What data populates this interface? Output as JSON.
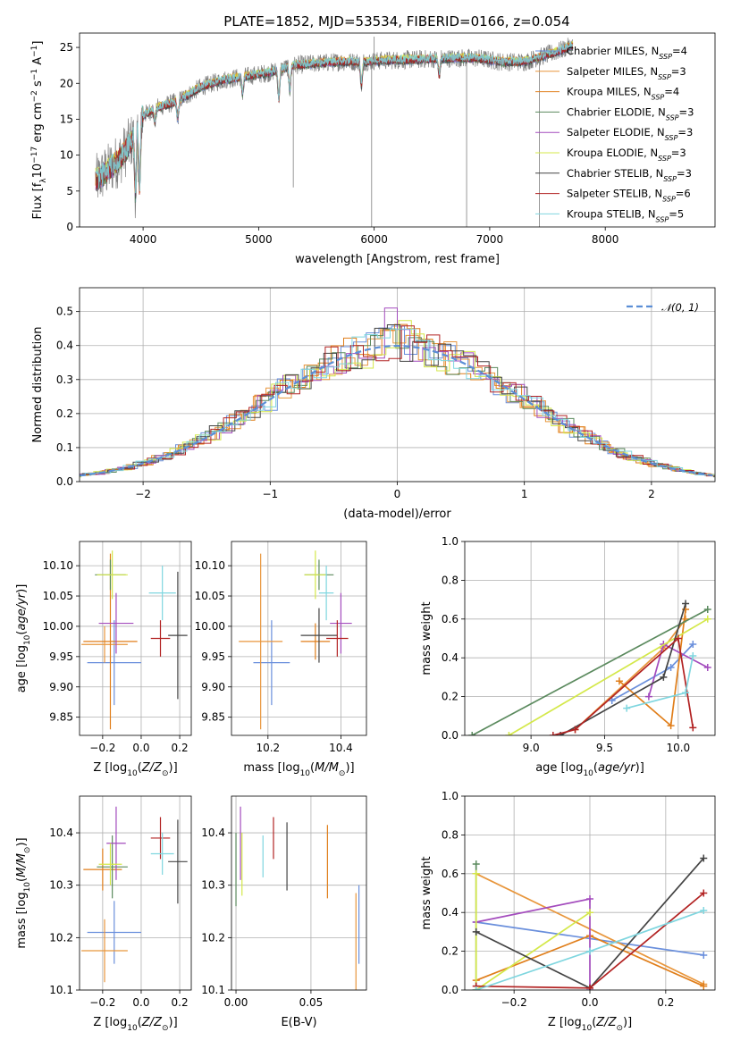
{
  "figure": {
    "title": "PLATE=1852, MJD=53534, FIBERID=0166, z=0.054"
  },
  "colors": {
    "series": [
      "#6a8fdc",
      "#e8963c",
      "#e07e1a",
      "#5b8a5e",
      "#a34bbd",
      "#d4e84a",
      "#444444",
      "#b22222",
      "#7fd6df"
    ]
  },
  "chart_data": [
    {
      "id": "spectrum",
      "type": "line",
      "xlabel": "wavelength [Angstrom, rest frame]",
      "ylabel": "Flux [f_λ 10^-17 erg cm^-2 s^-1 A^-1]",
      "xlim": [
        3450,
        8950
      ],
      "ylim": [
        0,
        27
      ],
      "xticks": [
        4000,
        5000,
        6000,
        7000,
        8000
      ],
      "yticks": [
        0,
        5,
        10,
        15,
        20,
        25
      ],
      "grid": false,
      "legend_placement": "top-right",
      "legend": [
        {
          "label": "Chabrier MILES",
          "nssp": "4"
        },
        {
          "label": "Salpeter MILES",
          "nssp": "3"
        },
        {
          "label": "Kroupa MILES",
          "nssp": "4"
        },
        {
          "label": "Chabrier ELODIE",
          "nssp": "3"
        },
        {
          "label": "Salpeter ELODIE",
          "nssp": "3"
        },
        {
          "label": "Kroupa ELODIE",
          "nssp": "3"
        },
        {
          "label": "Chabrier STELIB",
          "nssp": "3"
        },
        {
          "label": "Salpeter STELIB",
          "nssp": "6"
        },
        {
          "label": "Kroupa STELIB",
          "nssp": "5"
        }
      ],
      "continuum": [
        [
          3600,
          6.5
        ],
        [
          3700,
          8.0
        ],
        [
          3800,
          9.5
        ],
        [
          3900,
          12.0
        ],
        [
          4000,
          15.5
        ],
        [
          4100,
          16.5
        ],
        [
          4200,
          17.0
        ],
        [
          4300,
          17.5
        ],
        [
          4400,
          18.5
        ],
        [
          4500,
          19.5
        ],
        [
          4700,
          20.5
        ],
        [
          4900,
          21.0
        ],
        [
          5100,
          21.5
        ],
        [
          5300,
          22.5
        ],
        [
          5500,
          22.8
        ],
        [
          5700,
          23.0
        ],
        [
          5900,
          23.0
        ],
        [
          6100,
          23.2
        ],
        [
          6300,
          23.3
        ],
        [
          6500,
          23.4
        ],
        [
          6700,
          23.5
        ],
        [
          6900,
          23.5
        ],
        [
          7100,
          23.0
        ],
        [
          7300,
          23.0
        ],
        [
          7500,
          24.0
        ],
        [
          7600,
          24.5
        ],
        [
          7700,
          25.2
        ]
      ],
      "absorption_dips": [
        [
          3934,
          4.0
        ],
        [
          3969,
          5.0
        ],
        [
          4102,
          14.5
        ],
        [
          4300,
          15.0
        ],
        [
          4861,
          18.5
        ],
        [
          5175,
          17.5
        ],
        [
          5270,
          19.0
        ],
        [
          5890,
          19.5
        ],
        [
          6563,
          21.0
        ]
      ],
      "spikes": [
        [
          5300,
          5.5
        ],
        [
          5978,
          0.0
        ],
        [
          6000,
          26.5
        ],
        [
          6800,
          0.0
        ],
        [
          7430,
          0.0
        ]
      ]
    },
    {
      "id": "residuals",
      "type": "bar",
      "xlabel": "(data-model)/error",
      "ylabel": "Normed distribution",
      "xlim": [
        -2.5,
        2.5
      ],
      "ylim": [
        0,
        0.57
      ],
      "xticks": [
        -2,
        -1,
        0,
        1,
        2
      ],
      "yticks": [
        0.0,
        0.1,
        0.2,
        0.3,
        0.4,
        0.5
      ],
      "grid": true,
      "legend_placement": "top-right",
      "legend_label": "𝒩(0, 1)",
      "bin_width": 0.1,
      "gaussian": {
        "mean": 0,
        "sigma": 1
      }
    },
    {
      "id": "age-vs-Z",
      "type": "scatter",
      "xlabel": "Z [log10(Z/Z⊙)]",
      "ylabel": "age [log10(age/yr)]",
      "xlim": [
        -0.32,
        0.26
      ],
      "ylim": [
        9.82,
        10.14
      ],
      "xticks": [
        -0.2,
        0.0,
        0.2
      ],
      "yticks": [
        9.85,
        9.9,
        9.95,
        10.0,
        10.05,
        10.1
      ],
      "grid": true,
      "points": [
        {
          "x": -0.14,
          "y": 9.94,
          "xerr": 0.14,
          "yerr": 0.07
        },
        {
          "x": -0.19,
          "y": 9.97,
          "xerr": 0.12,
          "yerr": 0.03
        },
        {
          "x": -0.16,
          "y": 9.975,
          "xerr": 0.14,
          "yerr": 0.145
        },
        {
          "x": -0.16,
          "y": 10.085,
          "xerr": 0.08,
          "yerr": 0.025
        },
        {
          "x": -0.13,
          "y": 10.005,
          "xerr": 0.09,
          "yerr": 0.05
        },
        {
          "x": -0.15,
          "y": 10.085,
          "xerr": 0.08,
          "yerr": 0.04
        },
        {
          "x": 0.19,
          "y": 9.985,
          "xerr": 0.05,
          "yerr": 0.105
        },
        {
          "x": 0.1,
          "y": 9.98,
          "xerr": 0.05,
          "yerr": 0.03
        },
        {
          "x": 0.11,
          "y": 10.055,
          "xerr": 0.07,
          "yerr": 0.045
        }
      ]
    },
    {
      "id": "age-vs-mass",
      "type": "scatter",
      "xlabel": "mass [log10(M/M⊙)]",
      "ylabel": "",
      "xlim": [
        10.1,
        10.47
      ],
      "ylim": [
        9.82,
        10.14
      ],
      "xticks": [
        10.2,
        10.4
      ],
      "yticks": [
        9.85,
        9.9,
        9.95,
        10.0,
        10.05,
        10.1
      ],
      "grid": true,
      "points": [
        {
          "x": 10.21,
          "y": 9.94,
          "xerr": 0.05,
          "yerr": 0.07
        },
        {
          "x": 10.18,
          "y": 9.975,
          "xerr": 0.06,
          "yerr": 0.145
        },
        {
          "x": 10.33,
          "y": 9.975,
          "xerr": 0.04,
          "yerr": 0.03
        },
        {
          "x": 10.34,
          "y": 10.085,
          "xerr": 0.04,
          "yerr": 0.025
        },
        {
          "x": 10.4,
          "y": 10.005,
          "xerr": 0.03,
          "yerr": 0.05
        },
        {
          "x": 10.33,
          "y": 10.085,
          "xerr": 0.03,
          "yerr": 0.04
        },
        {
          "x": 10.34,
          "y": 9.985,
          "xerr": 0.05,
          "yerr": 0.045
        },
        {
          "x": 10.39,
          "y": 9.98,
          "xerr": 0.03,
          "yerr": 0.03
        },
        {
          "x": 10.36,
          "y": 10.055,
          "xerr": 0.02,
          "yerr": 0.045
        }
      ]
    },
    {
      "id": "mass-weight-vs-age",
      "type": "line",
      "xlabel": "age  [log10(age/yr)]",
      "ylabel": "mass weight",
      "xlim": [
        8.55,
        10.25
      ],
      "ylim": [
        0,
        1
      ],
      "xticks": [
        9.0,
        9.5,
        10.0
      ],
      "yticks": [
        0.0,
        0.2,
        0.4,
        0.6,
        0.8,
        1.0
      ],
      "grid": true,
      "series": [
        {
          "x": [
            9.55,
            9.95,
            10.1
          ],
          "y": [
            0.18,
            0.35,
            0.47
          ]
        },
        {
          "x": [
            9.3,
            9.9,
            10.05
          ],
          "y": [
            0.03,
            0.45,
            0.6
          ]
        },
        {
          "x": [
            9.6,
            9.95,
            10.05
          ],
          "y": [
            0.28,
            0.05,
            0.65
          ]
        },
        {
          "x": [
            8.6,
            10.2
          ],
          "y": [
            0.0,
            0.65
          ]
        },
        {
          "x": [
            9.8,
            9.9,
            10.2
          ],
          "y": [
            0.2,
            0.47,
            0.35
          ]
        },
        {
          "x": [
            8.85,
            10.2
          ],
          "y": [
            0.0,
            0.6
          ]
        },
        {
          "x": [
            9.2,
            9.9,
            10.05
          ],
          "y": [
            0.0,
            0.3,
            0.68
          ]
        },
        {
          "x": [
            9.15,
            9.3,
            10.0,
            10.1
          ],
          "y": [
            0.0,
            0.03,
            0.5,
            0.04
          ]
        },
        {
          "x": [
            9.65,
            10.05,
            10.1
          ],
          "y": [
            0.14,
            0.22,
            0.41
          ]
        }
      ]
    },
    {
      "id": "mass-vs-Z",
      "type": "scatter",
      "xlabel": "Z [log10(Z/Z⊙)]",
      "ylabel": "mass [log10(M/M⊙)]",
      "xlim": [
        -0.32,
        0.26
      ],
      "ylim": [
        10.1,
        10.47
      ],
      "xticks": [
        -0.2,
        0.0,
        0.2
      ],
      "yticks": [
        10.1,
        10.2,
        10.3,
        10.4
      ],
      "grid": true,
      "points": [
        {
          "x": -0.14,
          "y": 10.21,
          "xerr": 0.14,
          "yerr": 0.06
        },
        {
          "x": -0.19,
          "y": 10.175,
          "xerr": 0.12,
          "yerr": 0.06
        },
        {
          "x": -0.2,
          "y": 10.33,
          "xerr": 0.1,
          "yerr": 0.04
        },
        {
          "x": -0.15,
          "y": 10.335,
          "xerr": 0.08,
          "yerr": 0.06
        },
        {
          "x": -0.13,
          "y": 10.38,
          "xerr": 0.05,
          "yerr": 0.07
        },
        {
          "x": -0.16,
          "y": 10.34,
          "xerr": 0.06,
          "yerr": 0.04
        },
        {
          "x": 0.19,
          "y": 10.345,
          "xerr": 0.05,
          "yerr": 0.08
        },
        {
          "x": 0.1,
          "y": 10.39,
          "xerr": 0.05,
          "yerr": 0.04
        },
        {
          "x": 0.11,
          "y": 10.36,
          "xerr": 0.06,
          "yerr": 0.04
        }
      ]
    },
    {
      "id": "mass-vs-EBV",
      "type": "scatter",
      "xlabel": "E(B-V)",
      "ylabel": "",
      "xlim": [
        -0.003,
        0.087
      ],
      "ylim": [
        10.1,
        10.47
      ],
      "xticks": [
        0.0,
        0.05
      ],
      "yticks": [
        10.1,
        10.2,
        10.3,
        10.4
      ],
      "grid": true,
      "points": [
        {
          "x": 0.082,
          "y": 10.225,
          "yerr": 0.075
        },
        {
          "x": 0.08,
          "y": 10.175,
          "yerr": 0.11
        },
        {
          "x": 0.061,
          "y": 10.345,
          "yerr": 0.07
        },
        {
          "x": 0.0,
          "y": 10.33,
          "yerr": 0.07
        },
        {
          "x": 0.003,
          "y": 10.38,
          "yerr": 0.07
        },
        {
          "x": 0.004,
          "y": 10.34,
          "yerr": 0.06
        },
        {
          "x": 0.034,
          "y": 10.355,
          "yerr": 0.065
        },
        {
          "x": 0.025,
          "y": 10.39,
          "yerr": 0.04
        },
        {
          "x": 0.018,
          "y": 10.355,
          "yerr": 0.04
        }
      ]
    },
    {
      "id": "mass-weight-vs-Z",
      "type": "line",
      "xlabel": "Z [log10(Z/Z⊙)]",
      "ylabel": "mass weight",
      "xlim": [
        -0.33,
        0.33
      ],
      "ylim": [
        0,
        1
      ],
      "xticks": [
        -0.2,
        0.0,
        0.2
      ],
      "yticks": [
        0.0,
        0.2,
        0.4,
        0.6,
        0.8,
        1.0
      ],
      "grid": true,
      "series": [
        {
          "x": [
            -0.3,
            0.3
          ],
          "y": [
            0.35,
            0.18
          ]
        },
        {
          "x": [
            -0.3,
            0.3
          ],
          "y": [
            0.6,
            0.03
          ]
        },
        {
          "x": [
            -0.3,
            0.0,
            0.3
          ],
          "y": [
            0.05,
            0.28,
            0.02
          ]
        },
        {
          "x": [
            -0.3,
            -0.3
          ],
          "y": [
            0.65,
            0.0
          ]
        },
        {
          "x": [
            -0.3,
            0.0,
            0.0
          ],
          "y": [
            0.35,
            0.47,
            0.0
          ]
        },
        {
          "x": [
            -0.3,
            -0.3,
            0.0
          ],
          "y": [
            0.6,
            0.0,
            0.4
          ]
        },
        {
          "x": [
            -0.3,
            0.0,
            0.3
          ],
          "y": [
            0.3,
            0.01,
            0.68
          ]
        },
        {
          "x": [
            -0.3,
            0.0,
            0.3
          ],
          "y": [
            0.02,
            0.01,
            0.5
          ]
        },
        {
          "x": [
            -0.3,
            0.0,
            0.3
          ],
          "y": [
            0.0,
            0.2,
            0.41
          ]
        }
      ]
    }
  ]
}
